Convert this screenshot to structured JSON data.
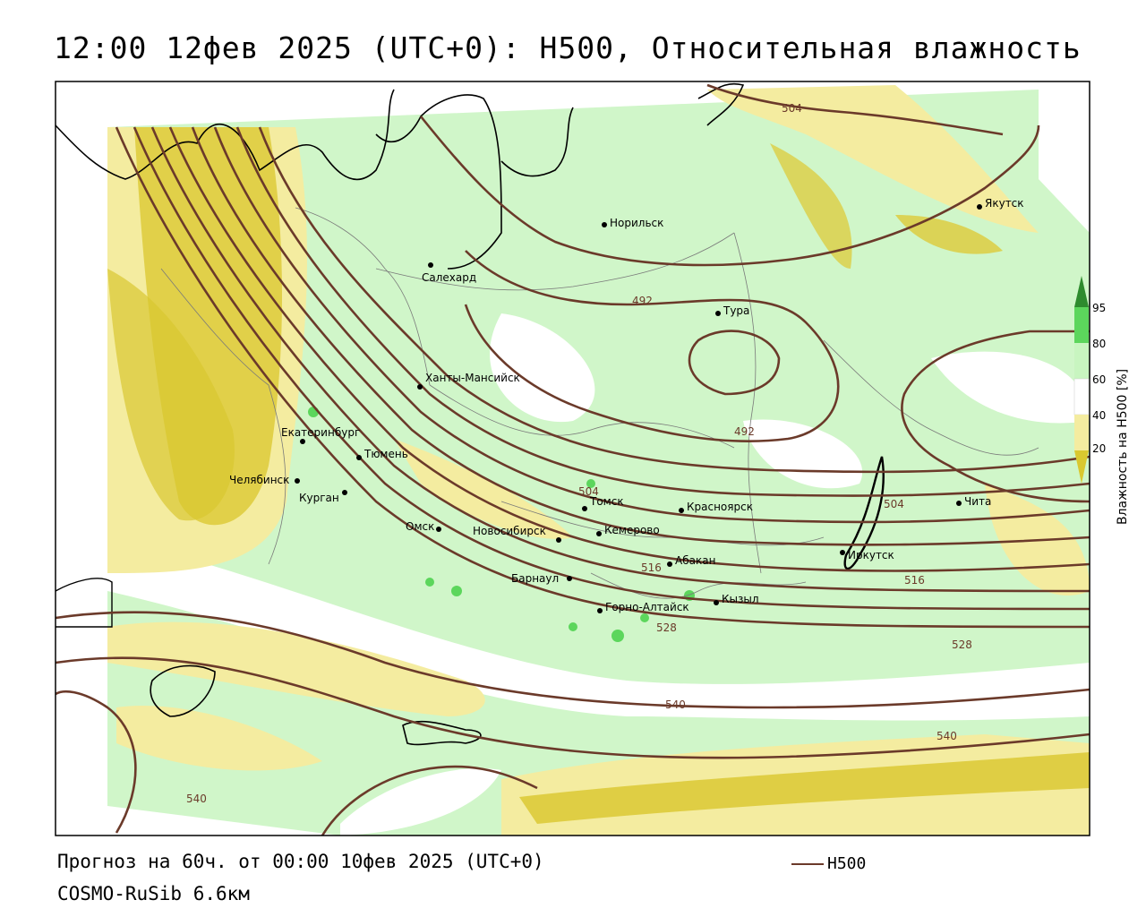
{
  "title": "12:00 12фев 2025 (UTC+0): H500, Относительная влажность",
  "footer": {
    "forecast": "Прогноз на 60ч. от 00:00 10фев 2025 (UTC+0)",
    "model": "COSMO-RuSib 6.6км",
    "h500_legend": "H500"
  },
  "colorbar": {
    "title": "Влажность на H500 [%]",
    "ticks": [
      "95",
      "80",
      "60",
      "40",
      "20"
    ],
    "colors": {
      "95": "#2e8b2e",
      "80": "#5cd65c",
      "60": "#c8f5c0",
      "40": "#ffffff",
      "20": "#f4eca0",
      "0": "#d9c830"
    }
  },
  "contour_color": "#6b3a2a",
  "contour_labels": [
    "504",
    "492",
    "492",
    "504",
    "504",
    "516",
    "516",
    "528",
    "528",
    "540",
    "540",
    "540"
  ],
  "cities": [
    {
      "name": "Якутск"
    },
    {
      "name": "Норильск"
    },
    {
      "name": "Салехард"
    },
    {
      "name": "Тура"
    },
    {
      "name": "Ханты-Мансийск"
    },
    {
      "name": "Екатеринбург"
    },
    {
      "name": "Тюмень"
    },
    {
      "name": "Челябинск"
    },
    {
      "name": "Курган"
    },
    {
      "name": "Омск"
    },
    {
      "name": "Новосибирск"
    },
    {
      "name": "Томск"
    },
    {
      "name": "Кемерово"
    },
    {
      "name": "Красноярск"
    },
    {
      "name": "Абакан"
    },
    {
      "name": "Барнаул"
    },
    {
      "name": "Горно-Алтайск"
    },
    {
      "name": "Кызыл"
    },
    {
      "name": "Иркутск"
    },
    {
      "name": "Чита"
    }
  ]
}
